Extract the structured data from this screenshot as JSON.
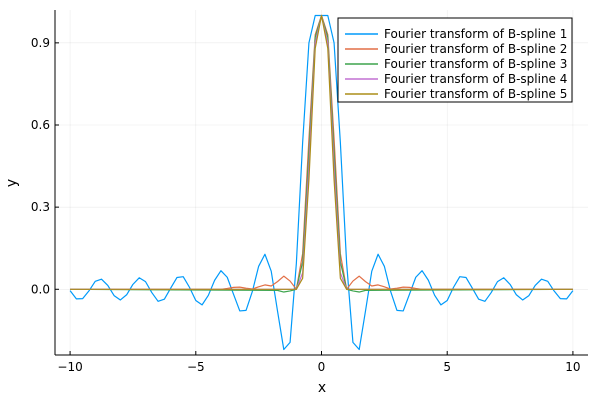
{
  "chart_data": {
    "type": "line",
    "xlabel": "x",
    "ylabel": "y",
    "xlim": [
      -10.6,
      10.6
    ],
    "ylim": [
      -0.24,
      1.02
    ],
    "xticks": [
      -10,
      -5,
      0,
      5,
      10
    ],
    "xtick_labels": [
      "−10",
      "−5",
      "0",
      "5",
      "10"
    ],
    "yticks": [
      0.0,
      0.3,
      0.6,
      0.9
    ],
    "ytick_labels": [
      "0.0",
      "0.3",
      "0.6",
      "0.9"
    ],
    "grid": true,
    "legend_position": "top-right",
    "series": [
      {
        "name": "Fourier transform of B-spline 1",
        "color": "#009AFA",
        "x": [
          -10.0,
          -9.75,
          -9.5,
          -9.25,
          -9.0,
          -8.75,
          -8.5,
          -8.25,
          -8.0,
          -7.75,
          -7.5,
          -7.25,
          -7.0,
          -6.75,
          -6.5,
          -6.25,
          -6.0,
          -5.75,
          -5.5,
          -5.25,
          -5.0,
          -4.75,
          -4.5,
          -4.25,
          -4.0,
          -3.75,
          -3.5,
          -3.25,
          -3.0,
          -2.75,
          -2.5,
          -2.25,
          -2.0,
          -1.75,
          -1.5,
          -1.25,
          -1.0,
          -0.75,
          -0.5,
          -0.25,
          0.0,
          0.25,
          0.5,
          0.75,
          1.0,
          1.25,
          1.5,
          1.75,
          2.0,
          2.25,
          2.5,
          2.75,
          3.0,
          3.25,
          3.5,
          3.75,
          4.0,
          4.25,
          4.5,
          4.75,
          5.0,
          5.25,
          5.5,
          5.75,
          6.0,
          6.25,
          6.5,
          6.75,
          7.0,
          7.25,
          7.5,
          7.75,
          8.0,
          8.25,
          8.5,
          8.75,
          9.0,
          9.25,
          9.5,
          9.75,
          10.0
        ],
        "y": [
          -0.005,
          -0.035,
          -0.034,
          -0.006,
          0.029,
          0.037,
          0.014,
          -0.023,
          -0.039,
          -0.02,
          0.018,
          0.042,
          0.028,
          -0.012,
          -0.044,
          -0.036,
          0.004,
          0.043,
          0.046,
          0.007,
          -0.041,
          -0.057,
          -0.022,
          0.033,
          0.068,
          0.044,
          -0.018,
          -0.079,
          -0.077,
          -0.008,
          0.084,
          0.128,
          0.066,
          -0.079,
          -0.22,
          -0.194,
          0.095,
          0.536,
          0.9,
          1.0,
          1.0,
          1.0,
          0.9,
          0.536,
          0.095,
          -0.194,
          -0.22,
          -0.079,
          0.066,
          0.128,
          0.084,
          -0.008,
          -0.077,
          -0.079,
          -0.018,
          0.044,
          0.068,
          0.033,
          -0.022,
          -0.057,
          -0.041,
          0.007,
          0.046,
          0.043,
          0.004,
          -0.036,
          -0.044,
          -0.012,
          0.028,
          0.042,
          0.018,
          -0.02,
          -0.039,
          -0.023,
          0.014,
          0.037,
          0.029,
          -0.006,
          -0.034,
          -0.035,
          -0.005
        ]
      },
      {
        "name": "Fourier transform of B-spline 2",
        "color": "#E26F46",
        "x": [
          -10.0,
          -4.0,
          -3.75,
          -3.5,
          -3.25,
          -3.0,
          -2.75,
          -2.5,
          -2.25,
          -2.0,
          -1.75,
          -1.5,
          -1.25,
          -1.0,
          -0.75,
          -0.5,
          -0.25,
          0.0,
          0.25,
          0.5,
          0.75,
          1.0,
          1.25,
          1.5,
          1.75,
          2.0,
          2.25,
          2.5,
          2.75,
          3.0,
          3.25,
          3.5,
          3.75,
          4.0,
          10.0
        ],
        "y": [
          0.0,
          0.0,
          0.003,
          0.007,
          0.008,
          0.004,
          0.001,
          0.009,
          0.016,
          0.012,
          0.028,
          0.048,
          0.03,
          0.0,
          0.13,
          0.55,
          0.93,
          1.0,
          0.93,
          0.55,
          0.13,
          0.0,
          0.03,
          0.048,
          0.028,
          0.012,
          0.016,
          0.009,
          0.001,
          0.004,
          0.008,
          0.007,
          0.003,
          0.0,
          0.0
        ]
      },
      {
        "name": "Fourier transform of B-spline 3",
        "color": "#3DA44D",
        "x": [
          -10.0,
          -1.75,
          -1.5,
          -1.25,
          -1.0,
          -0.75,
          -0.5,
          -0.25,
          0.0,
          0.25,
          0.5,
          0.75,
          1.0,
          1.25,
          1.5,
          1.75,
          10.0
        ],
        "y": [
          0.0,
          -0.004,
          -0.01,
          -0.006,
          0.0,
          0.1,
          0.5,
          0.92,
          1.0,
          0.92,
          0.5,
          0.1,
          0.0,
          -0.006,
          -0.01,
          -0.004,
          0.0
        ]
      },
      {
        "name": "Fourier transform of B-spline 4",
        "color": "#C271D2",
        "x": [
          -10.0,
          -1.0,
          -0.75,
          -0.5,
          -0.25,
          0.0,
          0.25,
          0.5,
          0.75,
          1.0,
          10.0
        ],
        "y": [
          0.0,
          0.0,
          0.06,
          0.45,
          0.9,
          1.0,
          0.9,
          0.45,
          0.06,
          0.0,
          0.0
        ]
      },
      {
        "name": "Fourier transform of B-spline 5",
        "color": "#AC8D18",
        "x": [
          -10.0,
          -1.0,
          -0.75,
          -0.5,
          -0.25,
          0.0,
          0.25,
          0.5,
          0.75,
          1.0,
          10.0
        ],
        "y": [
          0.0,
          0.0,
          0.04,
          0.4,
          0.88,
          1.0,
          0.88,
          0.4,
          0.04,
          0.0,
          0.0
        ]
      }
    ]
  }
}
